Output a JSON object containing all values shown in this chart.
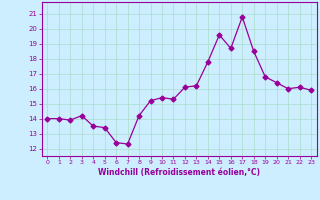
{
  "x": [
    0,
    1,
    2,
    3,
    4,
    5,
    6,
    7,
    8,
    9,
    10,
    11,
    12,
    13,
    14,
    15,
    16,
    17,
    18,
    19,
    20,
    21,
    22,
    23
  ],
  "y": [
    14.0,
    14.0,
    13.9,
    14.2,
    13.5,
    13.4,
    12.4,
    12.3,
    14.2,
    15.2,
    15.4,
    15.3,
    16.1,
    16.2,
    17.8,
    19.6,
    18.7,
    20.8,
    18.5,
    16.8,
    16.4,
    16.0,
    16.1,
    15.9
  ],
  "xlabel": "Windchill (Refroidissement éolien,°C)",
  "xlim": [
    -0.5,
    23.5
  ],
  "ylim": [
    11.5,
    21.8
  ],
  "yticks": [
    12,
    13,
    14,
    15,
    16,
    17,
    18,
    19,
    20,
    21
  ],
  "xticks": [
    0,
    1,
    2,
    3,
    4,
    5,
    6,
    7,
    8,
    9,
    10,
    11,
    12,
    13,
    14,
    15,
    16,
    17,
    18,
    19,
    20,
    21,
    22,
    23
  ],
  "line_color": "#990099",
  "marker": "D",
  "marker_size": 2.5,
  "line_width": 0.9,
  "bg_color": "#cceeff",
  "grid_color": "#aaddcc",
  "tick_color": "#990099",
  "label_color": "#990099"
}
